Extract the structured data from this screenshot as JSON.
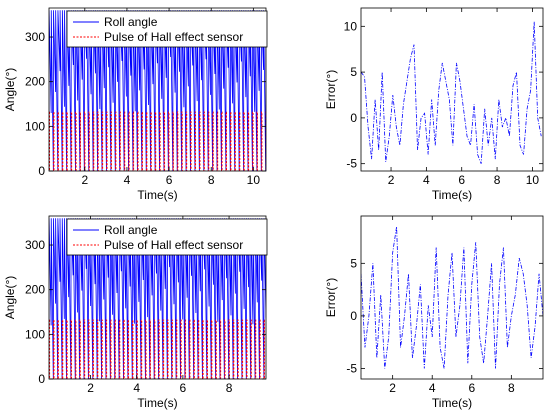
{
  "chart_data": [
    {
      "type": "line",
      "xlabel": "Time(s)",
      "ylabel": "Angle(°)",
      "xlim": [
        0.3,
        10.6
      ],
      "ylim": [
        0,
        365
      ],
      "xticks": [
        2,
        4,
        6,
        8,
        10
      ],
      "yticks": [
        0,
        100,
        200,
        300
      ],
      "legend_position": "top-right",
      "series": [
        {
          "name": "Roll angle",
          "color": "#0000ff",
          "style": "solid",
          "kind": "sawtooth",
          "min": 0,
          "max": 360,
          "period": 0.21,
          "trough_band": [
            130,
            360
          ]
        },
        {
          "name": "Pulse of Hall effect sensor",
          "color": "#ff0000",
          "style": "dashed",
          "kind": "pulse",
          "low": 0,
          "high": 132,
          "period": 0.21,
          "pulse_width": 0.03
        }
      ]
    },
    {
      "type": "line",
      "xlabel": "Time(s)",
      "ylabel": "Error(°)",
      "xlim": [
        0.3,
        10.6
      ],
      "ylim": [
        -5.8,
        12
      ],
      "xticks": [
        2,
        4,
        6,
        8,
        10
      ],
      "yticks": [
        -5,
        0,
        5,
        10
      ],
      "series": [
        {
          "color": "#0000ff",
          "style": "dashdot",
          "x": [
            0.3,
            0.5,
            0.7,
            0.9,
            1.1,
            1.3,
            1.5,
            1.7,
            1.9,
            2.1,
            2.3,
            2.5,
            2.7,
            2.9,
            3.1,
            3.3,
            3.5,
            3.7,
            3.9,
            4.1,
            4.3,
            4.5,
            4.7,
            4.9,
            5.1,
            5.3,
            5.5,
            5.7,
            5.9,
            6.1,
            6.3,
            6.5,
            6.7,
            6.9,
            7.1,
            7.3,
            7.5,
            7.7,
            7.9,
            8.1,
            8.3,
            8.5,
            8.7,
            8.9,
            9.1,
            9.3,
            9.5,
            9.7,
            9.9,
            10.1,
            10.3,
            10.5
          ],
          "y": [
            5,
            4.5,
            -1,
            -4.5,
            2,
            -3.5,
            5,
            -4.8,
            -2,
            2.5,
            -1,
            -3,
            1.5,
            4,
            6.5,
            8,
            -3.5,
            0,
            0.5,
            -4,
            2,
            -3,
            3,
            6,
            4,
            2,
            -3,
            6,
            4,
            1,
            -2,
            -3,
            1.5,
            -4,
            -5,
            1,
            -3,
            0,
            -4.5,
            2,
            -1,
            0,
            -2,
            3.5,
            5,
            -3,
            -4,
            1,
            3,
            10.5,
            0,
            -2
          ]
        }
      ]
    },
    {
      "type": "line",
      "xlabel": "Time(s)",
      "ylabel": "Angle(°)",
      "xlim": [
        0.2,
        9.6
      ],
      "ylim": [
        0,
        365
      ],
      "xticks": [
        2,
        4,
        6,
        8
      ],
      "yticks": [
        0,
        100,
        200,
        300
      ],
      "legend_position": "top-right",
      "series": [
        {
          "name": "Roll angle",
          "color": "#0000ff",
          "style": "solid",
          "kind": "sawtooth",
          "min": 0,
          "max": 360,
          "period": 0.19,
          "trough_band": [
            120,
            360
          ]
        },
        {
          "name": "Pulse of Hall effect sensor",
          "color": "#ff0000",
          "style": "dashed",
          "kind": "pulse",
          "low": 0,
          "high": 132,
          "period": 0.19,
          "pulse_width": 0.03
        }
      ]
    },
    {
      "type": "line",
      "xlabel": "Time(s)",
      "ylabel": "Error(°)",
      "xlim": [
        0.4,
        9.6
      ],
      "ylim": [
        -6,
        9.5
      ],
      "xticks": [
        2,
        4,
        6,
        8
      ],
      "yticks": [
        -5,
        0,
        5
      ],
      "series": [
        {
          "color": "#0000ff",
          "style": "dashdot",
          "x": [
            0.4,
            0.6,
            0.8,
            1.0,
            1.2,
            1.4,
            1.6,
            1.8,
            2.0,
            2.2,
            2.4,
            2.6,
            2.8,
            3.0,
            3.2,
            3.4,
            3.6,
            3.8,
            4.0,
            4.2,
            4.4,
            4.6,
            4.8,
            5.0,
            5.2,
            5.4,
            5.6,
            5.8,
            6.0,
            6.2,
            6.4,
            6.6,
            6.8,
            7.0,
            7.2,
            7.4,
            7.6,
            7.8,
            8.0,
            8.2,
            8.4,
            8.6,
            8.8,
            9.0,
            9.2,
            9.4,
            9.6
          ],
          "y": [
            4,
            -3,
            0,
            5,
            -4,
            2,
            -5,
            -2,
            6,
            8.5,
            -3,
            0,
            4,
            -4,
            -1,
            3,
            -5,
            1,
            -2,
            6.5,
            -3,
            -5,
            2,
            6,
            -2,
            1,
            6.5,
            -4.5,
            3,
            7,
            -2,
            -4.5,
            0,
            5,
            -5,
            3,
            6.5,
            -3,
            0,
            2,
            5.5,
            4,
            1,
            -4,
            -1,
            4,
            0
          ]
        }
      ]
    }
  ]
}
